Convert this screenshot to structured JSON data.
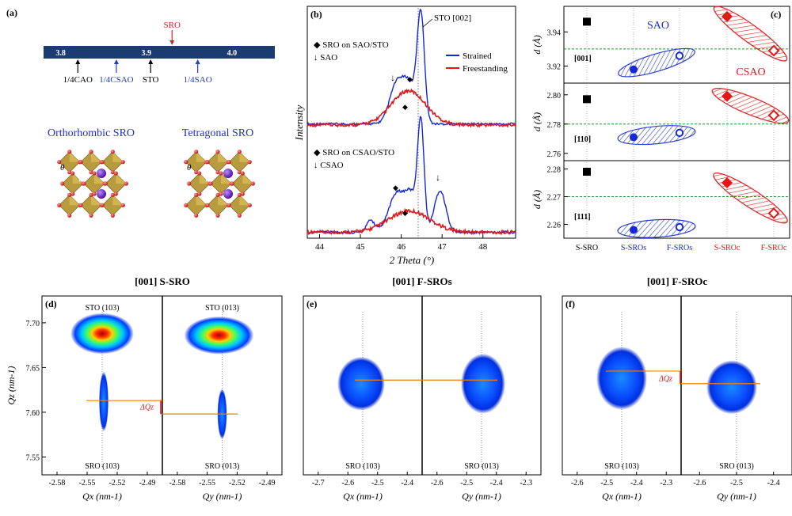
{
  "panel_a": {
    "label": "(a)",
    "sro_marker": "SRO",
    "ticks": [
      "3.8",
      "3.9",
      "4.0"
    ],
    "markers": [
      {
        "text": "1/4CAO",
        "value": 3.82,
        "color": "#000000"
      },
      {
        "text": "1/4CSAO",
        "value": 3.865,
        "color": "#1f3fbf"
      },
      {
        "text": "STO",
        "value": 3.905,
        "color": "#000000"
      },
      {
        "text": "1/4SAO",
        "value": 3.96,
        "color": "#1f3fbf"
      }
    ],
    "sro_value": 3.93,
    "struct_left": "Orthorhombic SRO",
    "struct_right": "Tetragonal SRO",
    "theta": "θ"
  },
  "panel_b": {
    "label": "(b)",
    "peak_label": "STO [002]",
    "top_legend1": "◆ SRO on SAO/STO",
    "top_legend2": "↓ SAO",
    "bottom_legend1": "◆ SRO on CSAO/STO",
    "bottom_legend2": "↓ CSAO",
    "series_strained": "Strained",
    "series_free": "Freestanding",
    "ylabel": "Intensity",
    "xlabel": "2 Theta (°)",
    "xticks": [
      "44",
      "45",
      "46",
      "47",
      "48"
    ]
  },
  "panel_c": {
    "label": "(c)",
    "label_sao": "SAO",
    "label_csao": "CSAO",
    "ylabel": "d (Å)",
    "categories": [
      "S-SRO",
      "S-SROs",
      "F-SROs",
      "S-SROc",
      "F-SROc"
    ],
    "rows": [
      {
        "dir": "[001]",
        "yticks": [
          "3.92",
          "3.94"
        ],
        "ylim": [
          3.91,
          3.955
        ],
        "ref": 3.93,
        "values": [
          3.946,
          3.918,
          3.926,
          3.949,
          3.929
        ]
      },
      {
        "dir": "[110]",
        "yticks": [
          "2.76",
          "2.78",
          "2.80"
        ],
        "ylim": [
          2.755,
          2.808
        ],
        "ref": 2.78,
        "values": [
          2.797,
          2.771,
          2.774,
          2.799,
          2.786
        ]
      },
      {
        "dir": "[111]",
        "yticks": [
          "2.26",
          "2.27",
          "2.28"
        ],
        "ylim": [
          2.255,
          2.283
        ],
        "ref": 2.27,
        "values": [
          2.279,
          2.258,
          2.259,
          2.275,
          2.264
        ]
      }
    ]
  },
  "bottom": {
    "titles": [
      "[001] S-SRO",
      "[001] F-SROs",
      "[001] F-SROc"
    ],
    "panels": [
      {
        "label": "(d)",
        "top_left": "STO (103)",
        "top_right": "STO (013)",
        "bot_left": "SRO (103)",
        "bot_right": "SRO (013)",
        "xticks_left": [
          "-2.58",
          "-2.55",
          "-2.52",
          "-2.49"
        ],
        "xticks_right": [
          "-2.58",
          "-2.55",
          "-2.52",
          "-2.49"
        ],
        "delta": "ΔQz"
      },
      {
        "label": "(e)",
        "bot_left": "SRO (103)",
        "bot_right": "SRO (013)",
        "xticks_left": [
          "-2.7",
          "-2.6",
          "-2.5",
          "-2.4"
        ],
        "xticks_right": [
          "-2.6",
          "-2.5",
          "-2.4",
          "-2.3"
        ]
      },
      {
        "label": "(f)",
        "bot_left": "SRO (103)",
        "bot_right": "SRO (013)",
        "xticks_left": [
          "-2.6",
          "-2.5",
          "-2.4",
          "-2.3"
        ],
        "xticks_right": [
          "-2.6",
          "-2.5",
          "-2.4"
        ],
        "delta": "ΔQz"
      }
    ],
    "ylabel": "Qz (nm-1)",
    "yticks": [
      "7.55",
      "7.60",
      "7.65",
      "7.70"
    ],
    "xlabel_left": "Qx (nm-1)",
    "xlabel_right": "Qy (nm-1)"
  },
  "chart_data": [
    {
      "type": "line",
      "title": "",
      "xlabel": "2 Theta (°)",
      "ylabel": "Intensity",
      "xlim": [
        43.7,
        48.8
      ],
      "series": [
        {
          "name": "Strained"
        },
        {
          "name": "Freestanding"
        }
      ]
    },
    {
      "type": "scatter",
      "xlabel": "",
      "ylabel": "d (Å)",
      "categories": [
        "S-SRO",
        "S-SROs",
        "F-SROs",
        "S-SROc",
        "F-SROc"
      ]
    }
  ]
}
